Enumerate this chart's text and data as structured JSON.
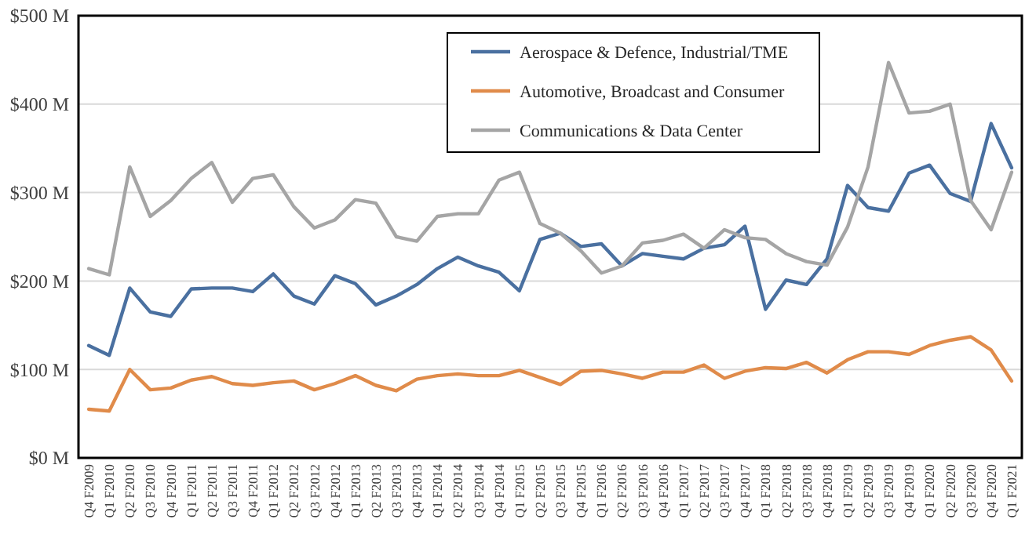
{
  "chart_data": {
    "type": "line",
    "categories": [
      "Q4 F2009",
      "Q1 F2010",
      "Q2 F2010",
      "Q3 F2010",
      "Q4 F2010",
      "Q1 F2011",
      "Q2 F2011",
      "Q3 F2011",
      "Q4 F2011",
      "Q1 F2012",
      "Q2 F2012",
      "Q3 F2012",
      "Q4 F2012",
      "Q1 F2013",
      "Q2 F2013",
      "Q3 F2013",
      "Q4 F2013",
      "Q1 F2014",
      "Q2 F2014",
      "Q3 F2014",
      "Q4 F2014",
      "Q1 F2015",
      "Q2 F2015",
      "Q3 F2015",
      "Q4 F2015",
      "Q1 F2016",
      "Q2 F2016",
      "Q3 F2016",
      "Q4 F2016",
      "Q1 F2017",
      "Q2 F2017",
      "Q3 F2017",
      "Q4 F2017",
      "Q1 F2018",
      "Q2 F2018",
      "Q3 F2018",
      "Q4 F2018",
      "Q1 F2019",
      "Q2 F2019",
      "Q3 F2019",
      "Q4 F2019",
      "Q1 F2020",
      "Q2 F2020",
      "Q3 F2020",
      "Q4 F2020",
      "Q1 F2021"
    ],
    "series": [
      {
        "name": "Aerospace & Defence, Industrial/TME",
        "color": "#4a70a0",
        "values": [
          127,
          116,
          192,
          165,
          160,
          191,
          192,
          192,
          188,
          208,
          183,
          174,
          206,
          197,
          173,
          183,
          196,
          214,
          227,
          217,
          210,
          189,
          247,
          254,
          239,
          242,
          217,
          231,
          228,
          225,
          237,
          241,
          262,
          168,
          201,
          196,
          225,
          308,
          283,
          279,
          322,
          331,
          299,
          290,
          378,
          328
        ]
      },
      {
        "name": "Automotive, Broadcast and Consumer",
        "color": "#e08b4a",
        "values": [
          55,
          53,
          100,
          77,
          79,
          88,
          92,
          84,
          82,
          85,
          87,
          77,
          84,
          93,
          82,
          76,
          89,
          93,
          95,
          93,
          93,
          99,
          91,
          83,
          98,
          99,
          95,
          90,
          97,
          97,
          105,
          90,
          98,
          102,
          101,
          108,
          96,
          111,
          120,
          120,
          117,
          127,
          133,
          137,
          122,
          87
        ]
      },
      {
        "name": "Communications & Data Center",
        "color": "#a5a5a5",
        "values": [
          214,
          207,
          329,
          273,
          291,
          316,
          334,
          289,
          316,
          320,
          284,
          260,
          269,
          292,
          288,
          250,
          245,
          273,
          276,
          276,
          314,
          323,
          265,
          254,
          234,
          209,
          217,
          243,
          246,
          253,
          237,
          258,
          249,
          247,
          231,
          222,
          218,
          261,
          329,
          447,
          390,
          392,
          400,
          291,
          258,
          323
        ]
      }
    ],
    "ylim": [
      0,
      500
    ],
    "yticks": [
      {
        "value": 0,
        "label": "$0 M"
      },
      {
        "value": 100,
        "label": "$100 M"
      },
      {
        "value": 200,
        "label": "$200 M"
      },
      {
        "value": 300,
        "label": "$300 M"
      },
      {
        "value": 400,
        "label": "$400 M"
      },
      {
        "value": 500,
        "label": "$500 M"
      }
    ],
    "grid": "y",
    "legend": "top right",
    "marker": "none",
    "line_style": "solid"
  }
}
